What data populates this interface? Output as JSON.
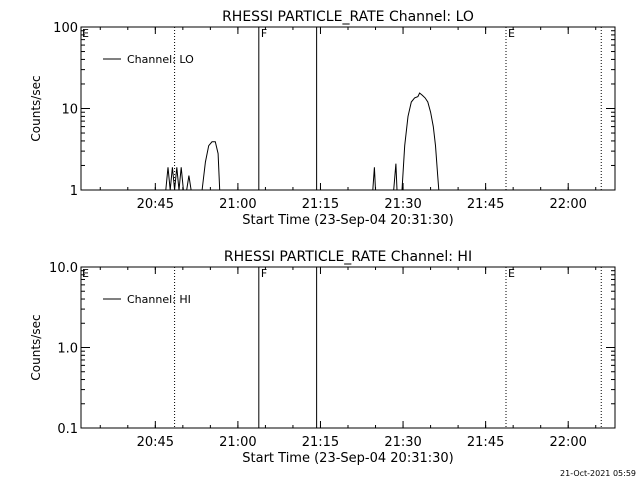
{
  "footer": {
    "timestamp": "21-Oct-2021 05:59"
  },
  "chart_data": [
    {
      "type": "line",
      "title": "RHESSI PARTICLE_RATE Channel: LO",
      "xlabel": "Start Time (23-Sep-04 20:31:30)",
      "ylabel": "Counts/sec",
      "yscale": "log",
      "ylim": [
        1,
        100
      ],
      "yticks": [
        1,
        10,
        100
      ],
      "ytick_labels": [
        "1",
        "10",
        "100"
      ],
      "xlim_minutes": [
        0,
        97
      ],
      "xticks": [
        {
          "t": 13.5,
          "label": "20:45"
        },
        {
          "t": 28.5,
          "label": "21:00"
        },
        {
          "t": 43.5,
          "label": "21:15"
        },
        {
          "t": 58.5,
          "label": "21:30"
        },
        {
          "t": 73.5,
          "label": "21:45"
        },
        {
          "t": 88.5,
          "label": "22:00"
        }
      ],
      "legend": {
        "label": "Channel: LO",
        "position": "top-left"
      },
      "markers": [
        {
          "t": 17.0,
          "style": "dotted",
          "label": ""
        },
        {
          "t": 32.3,
          "style": "solid",
          "label": "F"
        },
        {
          "t": 42.8,
          "style": "solid",
          "label": ""
        },
        {
          "t": 77.2,
          "style": "dotted",
          "label": "E"
        },
        {
          "t": 94.5,
          "style": "dotted",
          "label": ""
        }
      ],
      "edge_labels": [
        {
          "t": 0,
          "label": "E"
        }
      ],
      "series": [
        {
          "segments": [
            [
              [
                0,
                1
              ],
              [
                15.4,
                1
              ],
              [
                15.8,
                1.9
              ],
              [
                16.2,
                1
              ],
              [
                16.6,
                1.9
              ],
              [
                17.0,
                1
              ],
              [
                17.4,
                1.9
              ],
              [
                17.8,
                1
              ],
              [
                18.2,
                1.9
              ],
              [
                18.6,
                1
              ],
              [
                19.2,
                1
              ],
              [
                19.6,
                1.5
              ],
              [
                20.0,
                1
              ],
              [
                22.0,
                1
              ],
              [
                22.6,
                2.2
              ],
              [
                23.2,
                3.5
              ],
              [
                23.8,
                3.9
              ],
              [
                24.4,
                3.9
              ],
              [
                24.9,
                2.8
              ],
              [
                25.2,
                1
              ],
              [
                53.0,
                1
              ],
              [
                53.3,
                1.9
              ],
              [
                53.5,
                1
              ],
              [
                56.8,
                1
              ],
              [
                57.2,
                2.1
              ],
              [
                57.4,
                1
              ],
              [
                58.3,
                1
              ],
              [
                58.8,
                3.5
              ],
              [
                59.4,
                8
              ],
              [
                60.0,
                12
              ],
              [
                60.6,
                13.5
              ],
              [
                61.2,
                14
              ],
              [
                61.5,
                15.5
              ],
              [
                62.0,
                14.5
              ],
              [
                62.5,
                13.5
              ],
              [
                63.0,
                12
              ],
              [
                63.5,
                9
              ],
              [
                64.0,
                6
              ],
              [
                64.4,
                3.5
              ],
              [
                64.8,
                1.5
              ],
              [
                65.0,
                1
              ],
              [
                97,
                1
              ]
            ]
          ]
        }
      ]
    },
    {
      "type": "line",
      "title": "RHESSI PARTICLE_RATE Channel: HI",
      "xlabel": "Start Time (23-Sep-04 20:31:30)",
      "ylabel": "Counts/sec",
      "yscale": "log",
      "ylim": [
        0.1,
        10
      ],
      "yticks": [
        0.1,
        1,
        10
      ],
      "ytick_labels": [
        "0.1",
        "1.0",
        "10.0"
      ],
      "xlim_minutes": [
        0,
        97
      ],
      "xticks": [
        {
          "t": 13.5,
          "label": "20:45"
        },
        {
          "t": 28.5,
          "label": "21:00"
        },
        {
          "t": 43.5,
          "label": "21:15"
        },
        {
          "t": 58.5,
          "label": "21:30"
        },
        {
          "t": 73.5,
          "label": "21:45"
        },
        {
          "t": 88.5,
          "label": "22:00"
        }
      ],
      "legend": {
        "label": "Channel: HI",
        "position": "top-left"
      },
      "markers": [
        {
          "t": 17.0,
          "style": "dotted",
          "label": ""
        },
        {
          "t": 32.3,
          "style": "solid",
          "label": "F"
        },
        {
          "t": 42.8,
          "style": "solid",
          "label": ""
        },
        {
          "t": 77.2,
          "style": "dotted",
          "label": "E"
        },
        {
          "t": 94.5,
          "style": "dotted",
          "label": ""
        }
      ],
      "edge_labels": [
        {
          "t": 0,
          "label": "E"
        }
      ],
      "series": [
        {
          "segments": []
        }
      ]
    }
  ]
}
